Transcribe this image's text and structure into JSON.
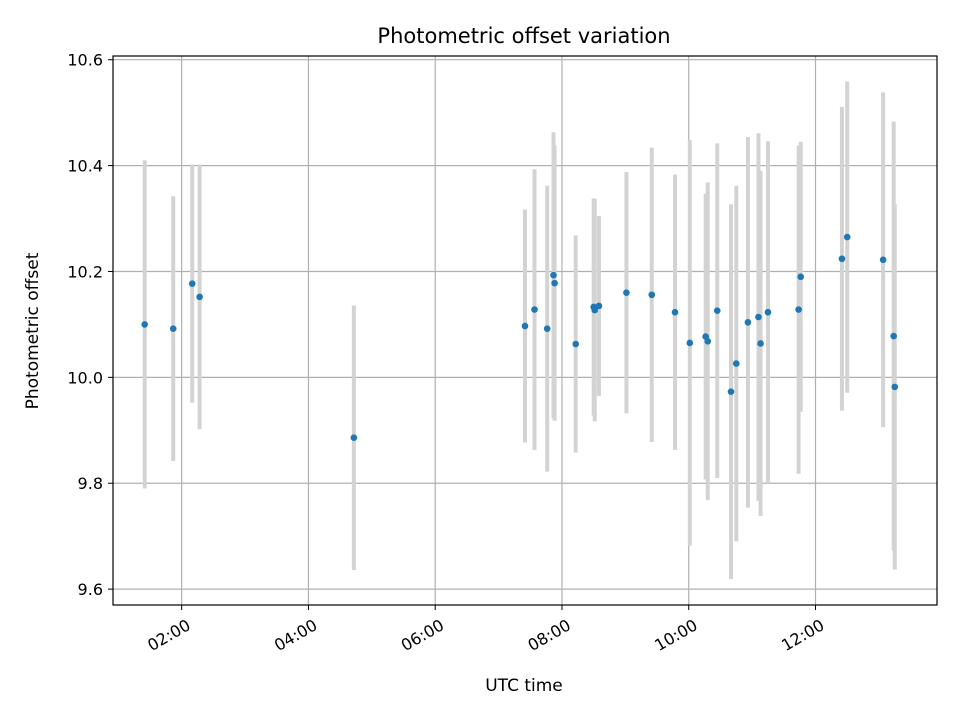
{
  "chart_data": {
    "type": "scatter",
    "title": "Photometric offset variation",
    "xlabel": "UTC time",
    "ylabel": "Photometric offset",
    "xlim": [
      "00:55",
      "13:55"
    ],
    "ylim": [
      9.57,
      10.607
    ],
    "x_ticks": [
      "02:00",
      "04:00",
      "06:00",
      "08:00",
      "10:00",
      "12:00"
    ],
    "y_ticks": [
      9.6,
      9.8,
      10.0,
      10.2,
      10.4,
      10.6
    ],
    "grid": true,
    "marker_color": "#1f77b4",
    "errorbar_color": "#d3d3d3",
    "points": [
      {
        "x": "01:25",
        "y": 10.1,
        "err": 0.31
      },
      {
        "x": "01:52",
        "y": 10.092,
        "err": 0.25
      },
      {
        "x": "02:10",
        "y": 10.177,
        "err": 0.225
      },
      {
        "x": "02:17",
        "y": 10.152,
        "err": 0.25
      },
      {
        "x": "04:43",
        "y": 9.886,
        "err": 0.25
      },
      {
        "x": "07:25",
        "y": 10.097,
        "err": 0.22
      },
      {
        "x": "07:34",
        "y": 10.128,
        "err": 0.265
      },
      {
        "x": "07:46",
        "y": 10.092,
        "err": 0.27
      },
      {
        "x": "07:52",
        "y": 10.193,
        "err": 0.27
      },
      {
        "x": "07:53",
        "y": 10.178,
        "err": 0.26
      },
      {
        "x": "08:13",
        "y": 10.063,
        "err": 0.205
      },
      {
        "x": "08:30",
        "y": 10.133,
        "err": 0.205
      },
      {
        "x": "08:31",
        "y": 10.127,
        "err": 0.21
      },
      {
        "x": "08:35",
        "y": 10.135,
        "err": 0.17
      },
      {
        "x": "09:01",
        "y": 10.16,
        "err": 0.228
      },
      {
        "x": "09:25",
        "y": 10.156,
        "err": 0.278
      },
      {
        "x": "09:47",
        "y": 10.123,
        "err": 0.26
      },
      {
        "x": "10:01",
        "y": 10.065,
        "err": 0.383
      },
      {
        "x": "10:16",
        "y": 10.077,
        "err": 0.27
      },
      {
        "x": "10:18",
        "y": 10.068,
        "err": 0.3
      },
      {
        "x": "10:27",
        "y": 10.126,
        "err": 0.316
      },
      {
        "x": "10:40",
        "y": 9.973,
        "err": 0.354
      },
      {
        "x": "10:45",
        "y": 10.026,
        "err": 0.336
      },
      {
        "x": "10:56",
        "y": 10.104,
        "err": 0.35
      },
      {
        "x": "11:06",
        "y": 10.114,
        "err": 0.347
      },
      {
        "x": "11:08",
        "y": 10.064,
        "err": 0.326
      },
      {
        "x": "11:15",
        "y": 10.123,
        "err": 0.323
      },
      {
        "x": "11:44",
        "y": 10.128,
        "err": 0.31
      },
      {
        "x": "11:46",
        "y": 10.19,
        "err": 0.255
      },
      {
        "x": "12:25",
        "y": 10.224,
        "err": 0.287
      },
      {
        "x": "12:30",
        "y": 10.265,
        "err": 0.294
      },
      {
        "x": "13:04",
        "y": 10.222,
        "err": 0.316
      },
      {
        "x": "13:14",
        "y": 10.078,
        "err": 0.405
      },
      {
        "x": "13:15",
        "y": 9.982,
        "err": 0.345
      }
    ]
  }
}
